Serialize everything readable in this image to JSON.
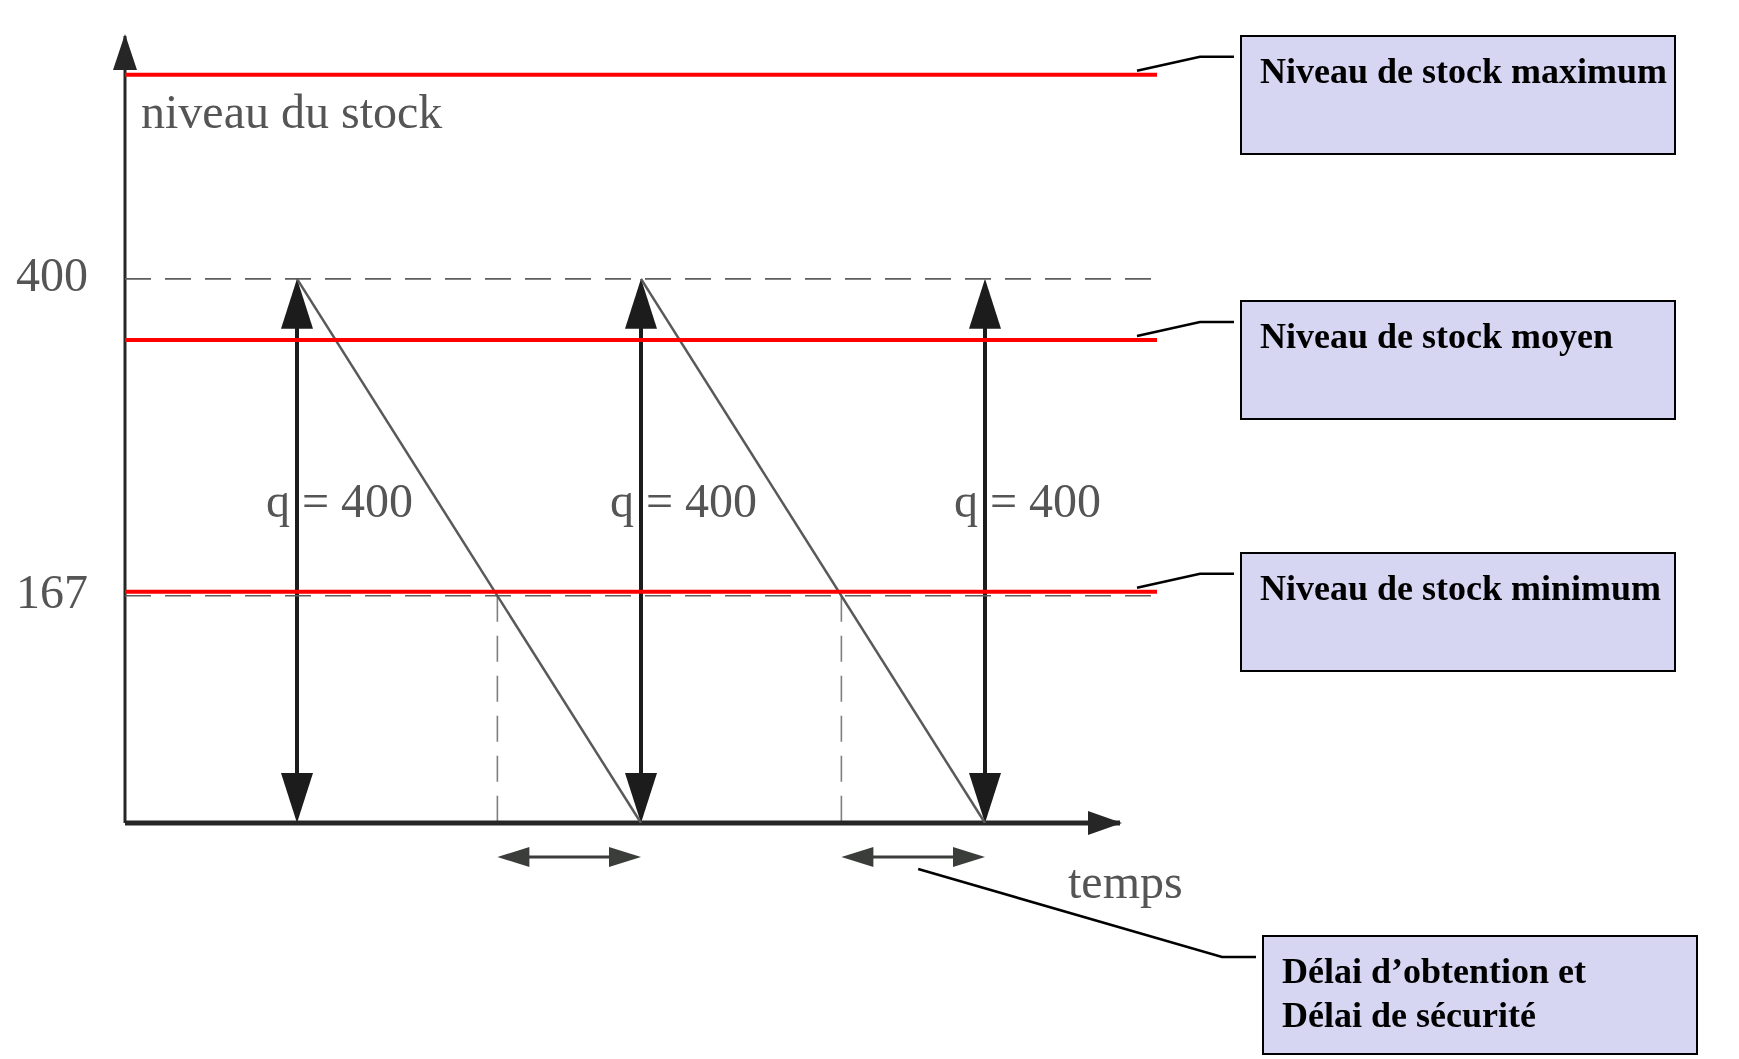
{
  "chart_data": {
    "type": "line",
    "xlabel": "temps",
    "ylabel": "niveau du stock",
    "categories": [
      null,
      null,
      null
    ],
    "series": [
      {
        "color": "#595959",
        "values": [
          400,
          0,
          null
        ]
      },
      {
        "color": "#595959",
        "values": [
          null,
          400,
          0
        ]
      }
    ],
    "ylim": [
      0,
      580
    ],
    "yticks": [
      167,
      400
    ],
    "grid": "y",
    "tick_labels": "y",
    "ref_lines": [
      {
        "axis": "y",
        "value": 550,
        "label": "Niveau de stock maximum",
        "color": "#ff0000"
      },
      {
        "axis": "y",
        "value": 355,
        "label": "Niveau de stock moyen",
        "color": "#ff0000"
      },
      {
        "axis": "y",
        "value": 170,
        "label": "Niveau de stock minimum",
        "color": "#ff0000"
      }
    ],
    "annotations": [
      "q = 400",
      "q = 400",
      "q = 400",
      "Délai d’obtention et\nDélai de sécurité"
    ]
  }
}
